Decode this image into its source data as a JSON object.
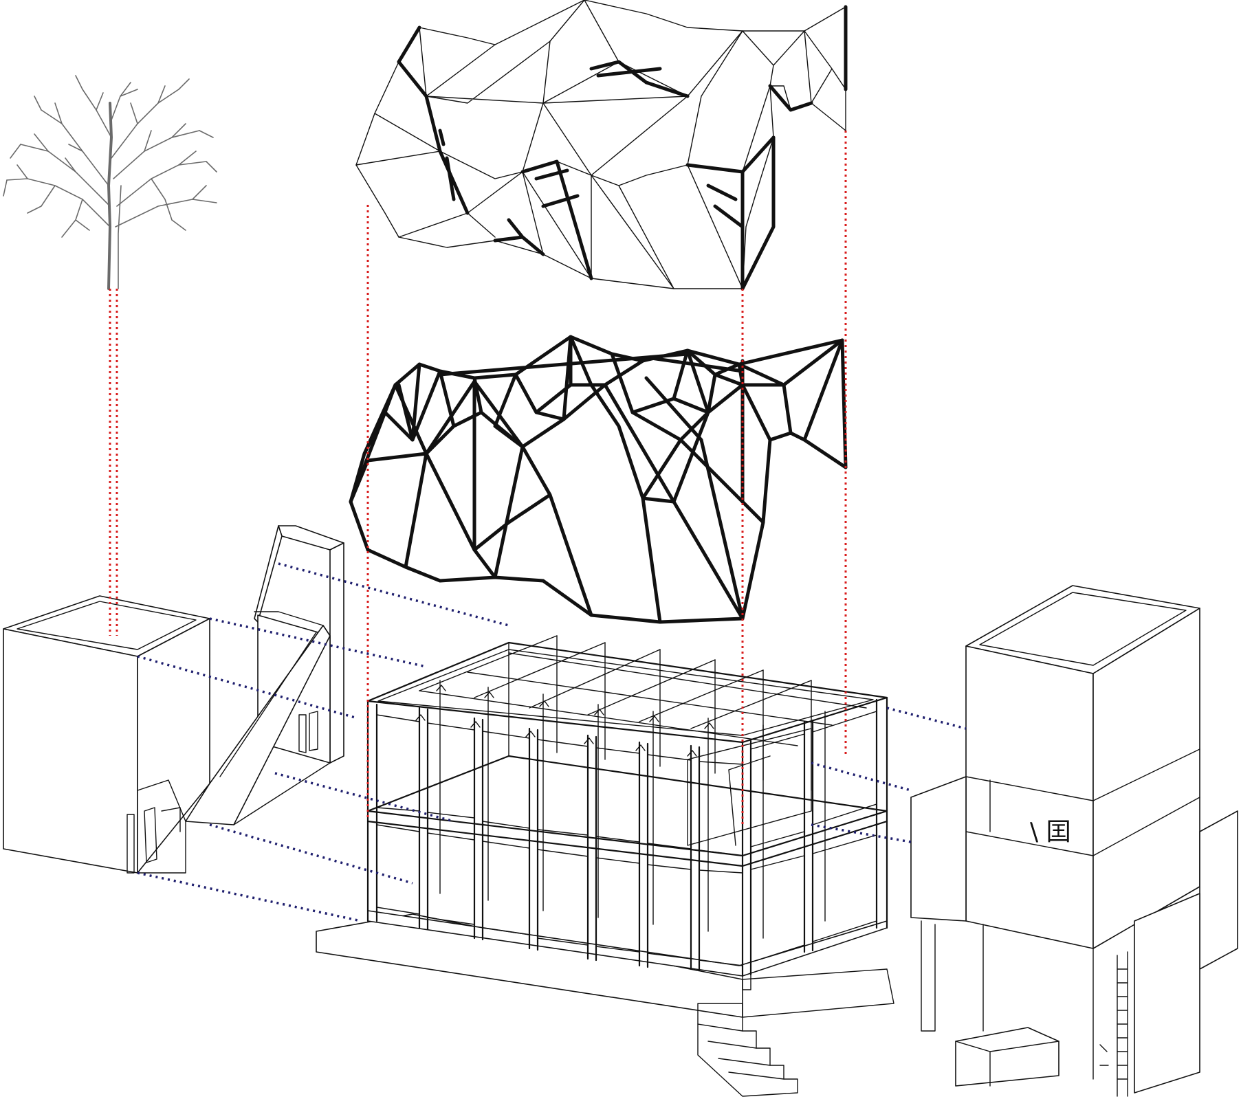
{
  "diagram": {
    "components": [
      {
        "id": "tree"
      },
      {
        "id": "faceted-roof-skin"
      },
      {
        "id": "space-frame-truss"
      },
      {
        "id": "left-service-volume"
      },
      {
        "id": "ramp-volume"
      },
      {
        "id": "grid-frame-structure"
      },
      {
        "id": "right-tower-volume"
      }
    ],
    "signage_text": "\\ 囯",
    "colors": {
      "vertical_alignment_lines": "#d81b1b",
      "horizontal_alignment_lines": "#1f1f6e",
      "linework": "#111111",
      "tree": "#6a6a6a"
    }
  }
}
